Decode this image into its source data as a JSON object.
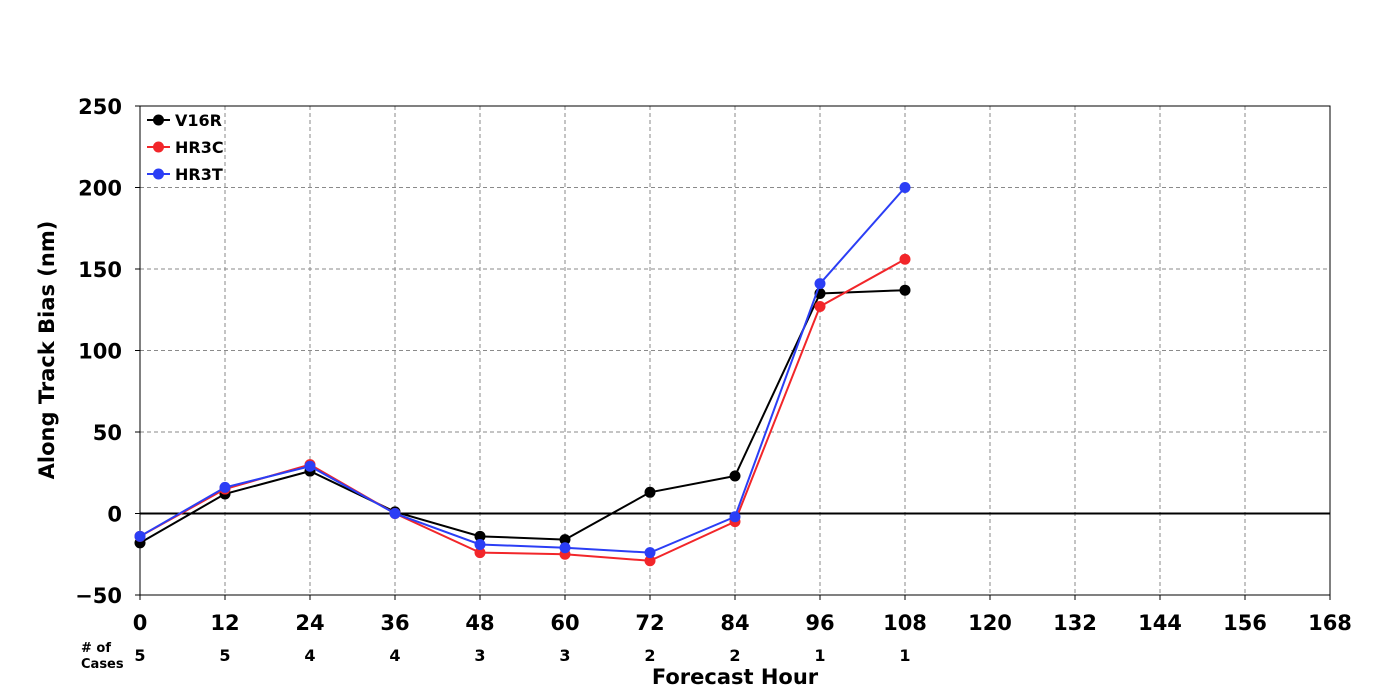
{
  "chart_data": {
    "type": "line",
    "xlabel": "Forecast Hour",
    "ylabel": "Along Track Bias (nm)",
    "xlim": [
      0,
      168
    ],
    "ylim": [
      -50,
      250
    ],
    "xticks": [
      0,
      12,
      24,
      36,
      48,
      60,
      72,
      84,
      96,
      108,
      120,
      132,
      144,
      156,
      168
    ],
    "yticks": [
      -50,
      0,
      50,
      100,
      150,
      200,
      250
    ],
    "ytick_labels": [
      "−50",
      "0",
      "50",
      "100",
      "150",
      "200",
      "250"
    ],
    "grid": true,
    "legend_position": "top-left",
    "series": [
      {
        "name": "V16R",
        "color": "#000000",
        "x": [
          0,
          12,
          24,
          36,
          48,
          60,
          72,
          84,
          96,
          108
        ],
        "values": [
          -18,
          12,
          26,
          1,
          -14,
          -16,
          13,
          23,
          135,
          137
        ]
      },
      {
        "name": "HR3C",
        "color": "#f2262a",
        "x": [
          0,
          12,
          24,
          36,
          48,
          60,
          72,
          84,
          96,
          108
        ],
        "values": [
          -14,
          15,
          30,
          0,
          -24,
          -25,
          -29,
          -5,
          127,
          156
        ]
      },
      {
        "name": "HR3T",
        "color": "#2b3ef5",
        "x": [
          0,
          12,
          24,
          36,
          48,
          60,
          72,
          84,
          96,
          108
        ],
        "values": [
          -14,
          16,
          29,
          0,
          -19,
          -21,
          -24,
          -2,
          141,
          200
        ]
      }
    ],
    "cases": {
      "label_line1": "# of",
      "label_line2": "Cases",
      "x": [
        0,
        12,
        24,
        36,
        48,
        60,
        72,
        84,
        96,
        108
      ],
      "values": [
        "5",
        "5",
        "4",
        "4",
        "3",
        "3",
        "2",
        "2",
        "1",
        "1"
      ]
    }
  }
}
